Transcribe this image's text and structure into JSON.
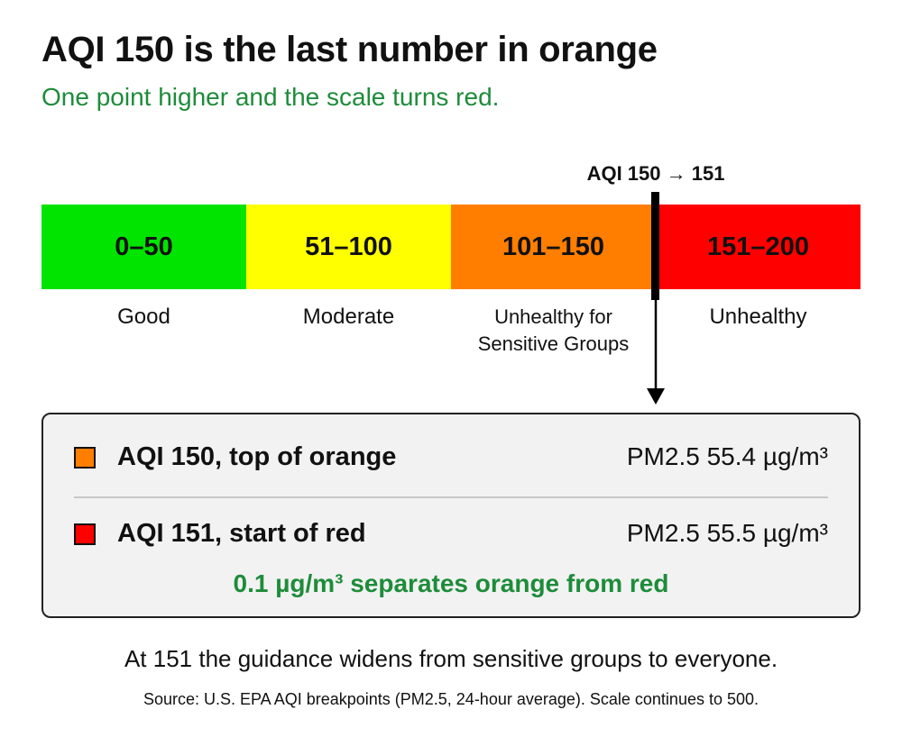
{
  "title": "AQI 150 is the last number in orange",
  "subtitle": "One point higher and the scale turns red.",
  "marker": {
    "label": "AQI 150 → 151"
  },
  "scale": {
    "segments": [
      {
        "range": "0–50",
        "category": "Good",
        "color": "#00e400"
      },
      {
        "range": "51–100",
        "category": "Moderate",
        "color": "#ffff00"
      },
      {
        "range": "101–150",
        "category_line1": "Unhealthy for",
        "category_line2": "Sensitive Groups",
        "color": "#ff7e00"
      },
      {
        "range": "151–200",
        "category": "Unhealthy",
        "color": "#ff0000"
      }
    ]
  },
  "comparison": {
    "rows": [
      {
        "label": "AQI 150, top of orange",
        "value": "PM2.5 55.4 µg/m³",
        "swatch": "#ff7e00"
      },
      {
        "label": "AQI 151, start of red",
        "value": "PM2.5 55.5 µg/m³",
        "swatch": "#ff0000"
      }
    ],
    "note": "0.1 µg/m³ separates orange from red"
  },
  "footnote": "At 151 the guidance widens from sensitive groups to everyone.",
  "source": "Source: U.S. EPA AQI breakpoints (PM2.5, 24-hour average). Scale continues to 500."
}
